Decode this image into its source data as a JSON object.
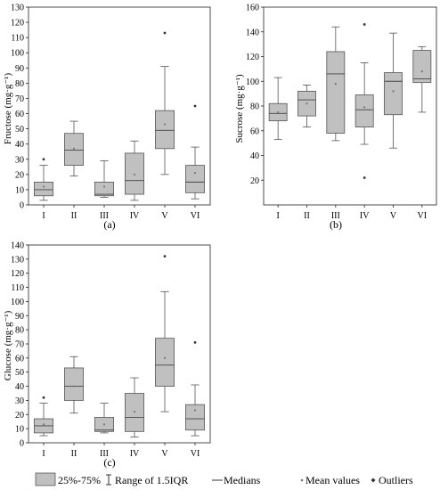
{
  "legend": {
    "iqr_label": "25%-75%",
    "range_label": "Range of 1.5IQR",
    "median_label": "Medians",
    "mean_label": "Mean values",
    "outlier_label": "Outliers",
    "colors": {
      "box_fill": "#c0c0c0",
      "stroke": "#555555",
      "marker": "#333333"
    }
  },
  "chart_data": [
    {
      "type": "box",
      "panel_label": "(a)",
      "ylabel": "Fructose (mg·g⁻¹)",
      "ylim": [
        0,
        130
      ],
      "yticks": [
        0,
        10,
        20,
        30,
        40,
        50,
        60,
        70,
        80,
        90,
        100,
        110,
        120,
        130
      ],
      "categories": [
        "I",
        "II",
        "III",
        "IV",
        "V",
        "VI"
      ],
      "boxes": [
        {
          "whisker_low": 3,
          "q1": 6,
          "median": 10,
          "q3": 15,
          "whisker_high": 26,
          "mean": 12,
          "outliers": [
            30
          ]
        },
        {
          "whisker_low": 19,
          "q1": 26,
          "median": 36,
          "q3": 47,
          "whisker_high": 55,
          "mean": 37,
          "outliers": []
        },
        {
          "whisker_low": 5,
          "q1": 6,
          "median": 7,
          "q3": 15,
          "whisker_high": 29,
          "mean": 12,
          "outliers": []
        },
        {
          "whisker_low": 3,
          "q1": 7,
          "median": 16,
          "q3": 34,
          "whisker_high": 42,
          "mean": 20,
          "outliers": []
        },
        {
          "whisker_low": 20,
          "q1": 37,
          "median": 49,
          "q3": 62,
          "whisker_high": 91,
          "mean": 53,
          "outliers": [
            113
          ]
        },
        {
          "whisker_low": 4,
          "q1": 8,
          "median": 15,
          "q3": 26,
          "whisker_high": 38,
          "mean": 21,
          "outliers": [
            65
          ]
        }
      ]
    },
    {
      "type": "box",
      "panel_label": "(b)",
      "ylabel": "Sucrose (mg·g⁻¹)",
      "ylim": [
        0,
        160
      ],
      "yticks": [
        20,
        40,
        60,
        80,
        100,
        120,
        140,
        160
      ],
      "categories": [
        "I",
        "II",
        "III",
        "IV",
        "V",
        "VI"
      ],
      "boxes": [
        {
          "whisker_low": 53,
          "q1": 68,
          "median": 74,
          "q3": 82,
          "whisker_high": 103,
          "mean": 75,
          "outliers": []
        },
        {
          "whisker_low": 63,
          "q1": 72,
          "median": 85,
          "q3": 92,
          "whisker_high": 97,
          "mean": 82,
          "outliers": []
        },
        {
          "whisker_low": 52,
          "q1": 58,
          "median": 106,
          "q3": 124,
          "whisker_high": 144,
          "mean": 98,
          "outliers": []
        },
        {
          "whisker_low": 49,
          "q1": 63,
          "median": 77,
          "q3": 89,
          "whisker_high": 115,
          "mean": 79,
          "outliers": [
            146,
            22
          ]
        },
        {
          "whisker_low": 46,
          "q1": 73,
          "median": 100,
          "q3": 107,
          "whisker_high": 139,
          "mean": 92,
          "outliers": []
        },
        {
          "whisker_low": 75,
          "q1": 99,
          "median": 102,
          "q3": 125,
          "whisker_high": 128,
          "mean": 108,
          "outliers": []
        }
      ]
    },
    {
      "type": "box",
      "panel_label": "(c)",
      "ylabel": "Glucose (mg·g⁻¹)",
      "ylim": [
        0,
        140
      ],
      "yticks": [
        0,
        10,
        20,
        30,
        40,
        50,
        60,
        70,
        80,
        90,
        100,
        110,
        120,
        130,
        140
      ],
      "categories": [
        "I",
        "II",
        "III",
        "IV",
        "V",
        "VI"
      ],
      "boxes": [
        {
          "whisker_low": 5,
          "q1": 7,
          "median": 12,
          "q3": 17,
          "whisker_high": 28,
          "mean": 13,
          "outliers": [
            32
          ]
        },
        {
          "whisker_low": 21,
          "q1": 30,
          "median": 40,
          "q3": 53,
          "whisker_high": 61,
          "mean": 40,
          "outliers": []
        },
        {
          "whisker_low": 7,
          "q1": 8,
          "median": 9,
          "q3": 18,
          "whisker_high": 28,
          "mean": 13,
          "outliers": []
        },
        {
          "whisker_low": 4,
          "q1": 8,
          "median": 18,
          "q3": 35,
          "whisker_high": 46,
          "mean": 22,
          "outliers": []
        },
        {
          "whisker_low": 22,
          "q1": 40,
          "median": 55,
          "q3": 74,
          "whisker_high": 107,
          "mean": 60,
          "outliers": [
            132
          ]
        },
        {
          "whisker_low": 5,
          "q1": 9,
          "median": 17,
          "q3": 27,
          "whisker_high": 41,
          "mean": 23,
          "outliers": [
            71
          ]
        }
      ]
    }
  ]
}
